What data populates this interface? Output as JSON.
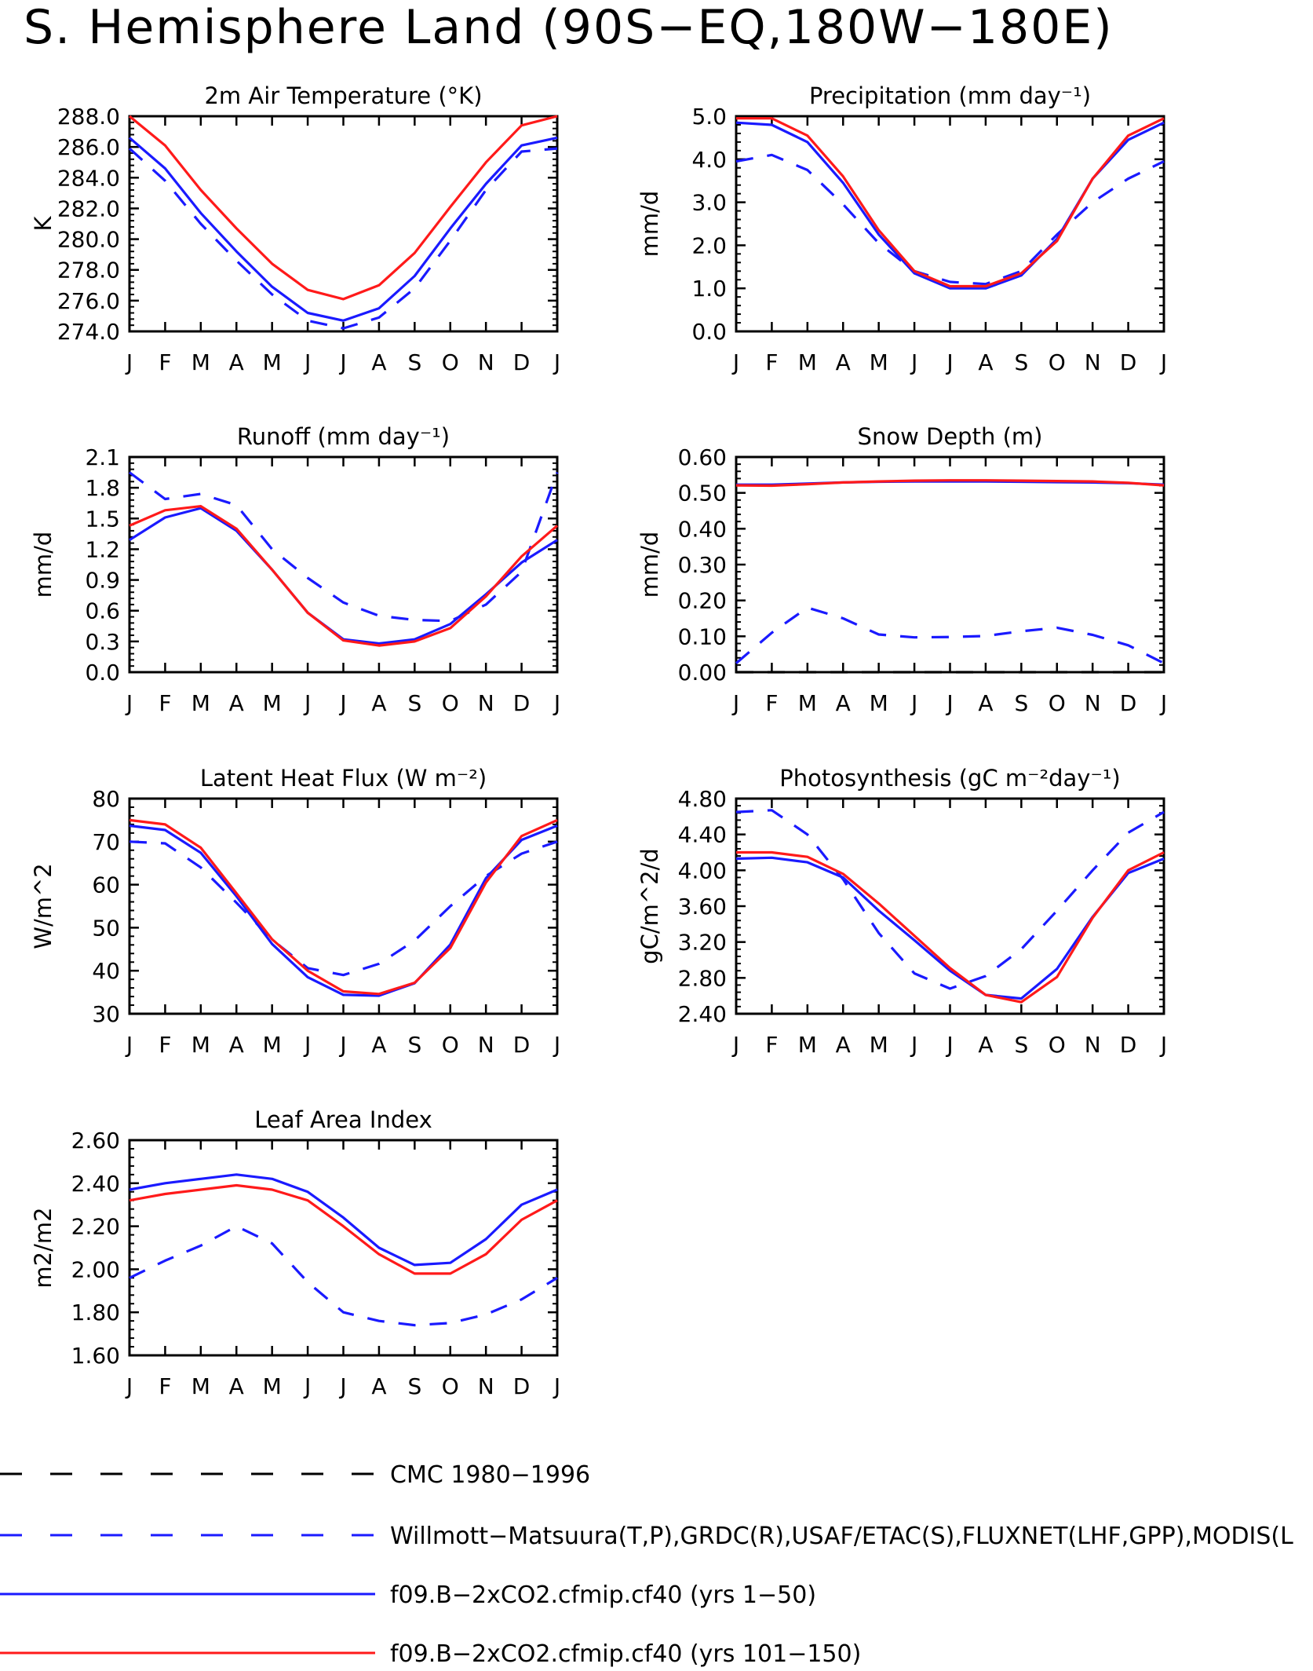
{
  "page": {
    "title": "S. Hemisphere Land (90S−EQ,180W−180E)"
  },
  "colors": {
    "obs_cmc": "#000000",
    "obs_willmott": "#1a1aff",
    "model_a": "#1a1aff",
    "model_b": "#ff1a1a"
  },
  "legend": [
    {
      "label": "CMC 1980−1996",
      "color": "#000000",
      "dash": true
    },
    {
      "label": "Willmott−Matsuura(T,P),GRDC(R),USAF/ETAC(S),FLUXNET(LHF,GPP),MODIS(L",
      "color": "#1a1aff",
      "dash": true
    },
    {
      "label": "f09.B−2xCO2.cfmip.cf40 (yrs 1−50)",
      "color": "#1a1aff",
      "dash": false
    },
    {
      "label": "f09.B−2xCO2.cfmip.cf40 (yrs 101−150)",
      "color": "#ff1a1a",
      "dash": false
    }
  ],
  "chart_data": [
    {
      "type": "line",
      "title": "2m Air Temperature (°K)",
      "ylabel": "K",
      "x": [
        "J",
        "F",
        "M",
        "A",
        "M",
        "J",
        "J",
        "A",
        "S",
        "O",
        "N",
        "D",
        "J"
      ],
      "ylim": [
        274.0,
        288.0
      ],
      "yticks": [
        "274.0",
        "276.0",
        "278.0",
        "280.0",
        "282.0",
        "284.0",
        "286.0",
        "288.0"
      ],
      "series": [
        {
          "name": "Willmott−Matsuura(T,P),GRDC(R),USAF/ETAC(S),FLUXNET(LHF,GPP),MODIS(L",
          "values": [
            285.9,
            283.8,
            281.0,
            278.6,
            276.4,
            274.7,
            274.2,
            274.9,
            276.8,
            279.9,
            283.2,
            285.7,
            285.9
          ]
        },
        {
          "name": "f09.B−2xCO2.cfmip.cf40 (yrs 1−50)",
          "values": [
            286.6,
            284.6,
            281.7,
            279.2,
            276.9,
            275.2,
            274.7,
            275.5,
            277.6,
            280.7,
            283.6,
            286.1,
            286.6
          ]
        },
        {
          "name": "f09.B−2xCO2.cfmip.cf40 (yrs 101−150)",
          "values": [
            288.0,
            286.1,
            283.2,
            280.7,
            278.4,
            276.7,
            276.1,
            277.0,
            279.1,
            282.1,
            285.0,
            287.4,
            288.0
          ]
        }
      ]
    },
    {
      "type": "line",
      "title": "Precipitation (mm day⁻¹)",
      "ylabel": "mm/d",
      "x": [
        "J",
        "F",
        "M",
        "A",
        "M",
        "J",
        "J",
        "A",
        "S",
        "O",
        "N",
        "D",
        "J"
      ],
      "ylim": [
        0.0,
        5.0
      ],
      "yticks": [
        "0.0",
        "1.0",
        "2.0",
        "3.0",
        "4.0",
        "5.0"
      ],
      "series": [
        {
          "name": "Willmott−Matsuura(T,P),GRDC(R),USAF/ETAC(S),FLUXNET(LHF,GPP),MODIS(L",
          "values": [
            3.95,
            4.1,
            3.75,
            2.95,
            2.05,
            1.4,
            1.15,
            1.1,
            1.4,
            2.25,
            3.0,
            3.55,
            3.95
          ]
        },
        {
          "name": "f09.B−2xCO2.cfmip.cf40 (yrs 1−50)",
          "values": [
            4.85,
            4.8,
            4.4,
            3.45,
            2.25,
            1.35,
            1.0,
            1.0,
            1.3,
            2.15,
            3.55,
            4.45,
            4.85
          ]
        },
        {
          "name": "f09.B−2xCO2.cfmip.cf40 (yrs 101−150)",
          "values": [
            4.95,
            4.95,
            4.55,
            3.6,
            2.35,
            1.4,
            1.05,
            1.05,
            1.35,
            2.1,
            3.55,
            4.55,
            4.95
          ]
        }
      ]
    },
    {
      "type": "line",
      "title": "Runoff (mm day⁻¹)",
      "ylabel": "mm/d",
      "x": [
        "J",
        "F",
        "M",
        "A",
        "M",
        "J",
        "J",
        "A",
        "S",
        "O",
        "N",
        "D",
        "J"
      ],
      "ylim": [
        0.0,
        2.1
      ],
      "yticks": [
        "0.0",
        "0.3",
        "0.6",
        "0.9",
        "1.2",
        "1.5",
        "1.8",
        "2.1"
      ],
      "series": [
        {
          "name": "Willmott−Matsuura(T,P),GRDC(R),USAF/ETAC(S),FLUXNET(LHF,GPP),MODIS(L",
          "values": [
            1.95,
            1.69,
            1.74,
            1.63,
            1.2,
            0.92,
            0.68,
            0.55,
            0.51,
            0.5,
            0.66,
            0.98,
            1.95
          ]
        },
        {
          "name": "f09.B−2xCO2.cfmip.cf40 (yrs 1−50)",
          "values": [
            1.29,
            1.51,
            1.6,
            1.38,
            1.0,
            0.58,
            0.32,
            0.28,
            0.32,
            0.47,
            0.76,
            1.07,
            1.29
          ]
        },
        {
          "name": "f09.B−2xCO2.cfmip.cf40 (yrs 101−150)",
          "values": [
            1.43,
            1.58,
            1.62,
            1.4,
            1.0,
            0.58,
            0.31,
            0.26,
            0.3,
            0.43,
            0.74,
            1.13,
            1.43
          ]
        }
      ]
    },
    {
      "type": "line",
      "title": "Snow Depth (m)",
      "ylabel": "mm/d",
      "x": [
        "J",
        "F",
        "M",
        "A",
        "M",
        "J",
        "J",
        "A",
        "S",
        "O",
        "N",
        "D",
        "J"
      ],
      "ylim": [
        0.0,
        0.6
      ],
      "yticks": [
        "0.00",
        "0.10",
        "0.20",
        "0.30",
        "0.40",
        "0.50",
        "0.60"
      ],
      "series": [
        {
          "name": "CMC 1980−1996",
          "values": [
            0.0,
            0.0,
            0.0,
            0.0,
            0.0,
            0.0,
            0.0,
            0.0,
            0.0,
            0.0,
            0.0,
            0.0,
            0.0
          ]
        },
        {
          "name": "Willmott−Matsuura(T,P),GRDC(R),USAF/ETAC(S),FLUXNET(LHF,GPP),MODIS(L",
          "values": [
            0.025,
            0.11,
            0.18,
            0.15,
            0.105,
            0.097,
            0.098,
            0.101,
            0.114,
            0.124,
            0.104,
            0.075,
            0.025
          ]
        },
        {
          "name": "f09.B−2xCO2.cfmip.cf40 (yrs 1−50)",
          "values": [
            0.523,
            0.523,
            0.526,
            0.529,
            0.531,
            0.532,
            0.532,
            0.532,
            0.531,
            0.53,
            0.529,
            0.527,
            0.523
          ]
        },
        {
          "name": "f09.B−2xCO2.cfmip.cf40 (yrs 101−150)",
          "values": [
            0.521,
            0.52,
            0.524,
            0.529,
            0.532,
            0.534,
            0.535,
            0.535,
            0.534,
            0.533,
            0.532,
            0.528,
            0.521
          ]
        }
      ]
    },
    {
      "type": "line",
      "title": "Latent Heat Flux (W m⁻²)",
      "ylabel": "W/m^2",
      "x": [
        "J",
        "F",
        "M",
        "A",
        "M",
        "J",
        "J",
        "A",
        "S",
        "O",
        "N",
        "D",
        "J"
      ],
      "ylim": [
        30,
        80
      ],
      "yticks": [
        "30",
        "40",
        "50",
        "60",
        "70",
        "80"
      ],
      "series": [
        {
          "name": "Willmott−Matsuura(T,P),GRDC(R),USAF/ETAC(S),FLUXNET(LHF,GPP),MODIS(L",
          "values": [
            70.0,
            69.6,
            64.0,
            55.8,
            47.2,
            40.6,
            39.0,
            41.6,
            47.0,
            55.0,
            62.0,
            67.2,
            70.0
          ]
        },
        {
          "name": "f09.B−2xCO2.cfmip.cf40 (yrs 1−50)",
          "values": [
            73.7,
            72.7,
            67.4,
            57.3,
            46.2,
            38.5,
            34.4,
            34.2,
            37.1,
            46.1,
            61.5,
            70.4,
            73.7
          ]
        },
        {
          "name": "f09.B−2xCO2.cfmip.cf40 (yrs 101−150)",
          "values": [
            75.0,
            74.0,
            68.6,
            58.0,
            47.3,
            40.0,
            35.2,
            34.6,
            37.2,
            45.3,
            60.5,
            71.3,
            75.0
          ]
        }
      ]
    },
    {
      "type": "line",
      "title": "Photosynthesis (gC m⁻²day⁻¹)",
      "ylabel": "gC/m^2/d",
      "x": [
        "J",
        "F",
        "M",
        "A",
        "M",
        "J",
        "J",
        "A",
        "S",
        "O",
        "N",
        "D",
        "J"
      ],
      "ylim": [
        2.4,
        4.8
      ],
      "yticks": [
        "2.40",
        "2.80",
        "3.20",
        "3.60",
        "4.00",
        "4.40",
        "4.80"
      ],
      "series": [
        {
          "name": "Willmott−Matsuura(T,P),GRDC(R),USAF/ETAC(S),FLUXNET(LHF,GPP),MODIS(L",
          "values": [
            4.65,
            4.67,
            4.4,
            3.9,
            3.3,
            2.85,
            2.68,
            2.82,
            3.12,
            3.55,
            4.0,
            4.42,
            4.65
          ]
        },
        {
          "name": "f09.B−2xCO2.cfmip.cf40 (yrs 1−50)",
          "values": [
            4.13,
            4.14,
            4.09,
            3.92,
            3.55,
            3.22,
            2.88,
            2.61,
            2.57,
            2.9,
            3.48,
            3.97,
            4.13
          ]
        },
        {
          "name": "f09.B−2xCO2.cfmip.cf40 (yrs 101−150)",
          "values": [
            4.2,
            4.2,
            4.15,
            3.96,
            3.63,
            3.27,
            2.91,
            2.61,
            2.53,
            2.81,
            3.47,
            4.0,
            4.2
          ]
        }
      ]
    },
    {
      "type": "line",
      "title": "Leaf Area Index",
      "ylabel": "m2/m2",
      "x": [
        "J",
        "F",
        "M",
        "A",
        "M",
        "J",
        "J",
        "A",
        "S",
        "O",
        "N",
        "D",
        "J"
      ],
      "ylim": [
        1.6,
        2.6
      ],
      "yticks": [
        "1.60",
        "1.80",
        "2.00",
        "2.20",
        "2.40",
        "2.60"
      ],
      "series": [
        {
          "name": "Willmott−Matsuura(T,P),GRDC(R),USAF/ETAC(S),FLUXNET(LHF,GPP),MODIS(L",
          "values": [
            1.96,
            2.04,
            2.11,
            2.2,
            2.12,
            1.94,
            1.8,
            1.76,
            1.74,
            1.75,
            1.79,
            1.86,
            1.96
          ]
        },
        {
          "name": "f09.B−2xCO2.cfmip.cf40 (yrs 1−50)",
          "values": [
            2.37,
            2.4,
            2.42,
            2.44,
            2.42,
            2.36,
            2.24,
            2.1,
            2.02,
            2.03,
            2.14,
            2.3,
            2.37
          ]
        },
        {
          "name": "f09.B−2xCO2.cfmip.cf40 (yrs 101−150)",
          "values": [
            2.32,
            2.35,
            2.37,
            2.39,
            2.37,
            2.32,
            2.2,
            2.07,
            1.98,
            1.98,
            2.07,
            2.23,
            2.32
          ]
        }
      ]
    }
  ]
}
